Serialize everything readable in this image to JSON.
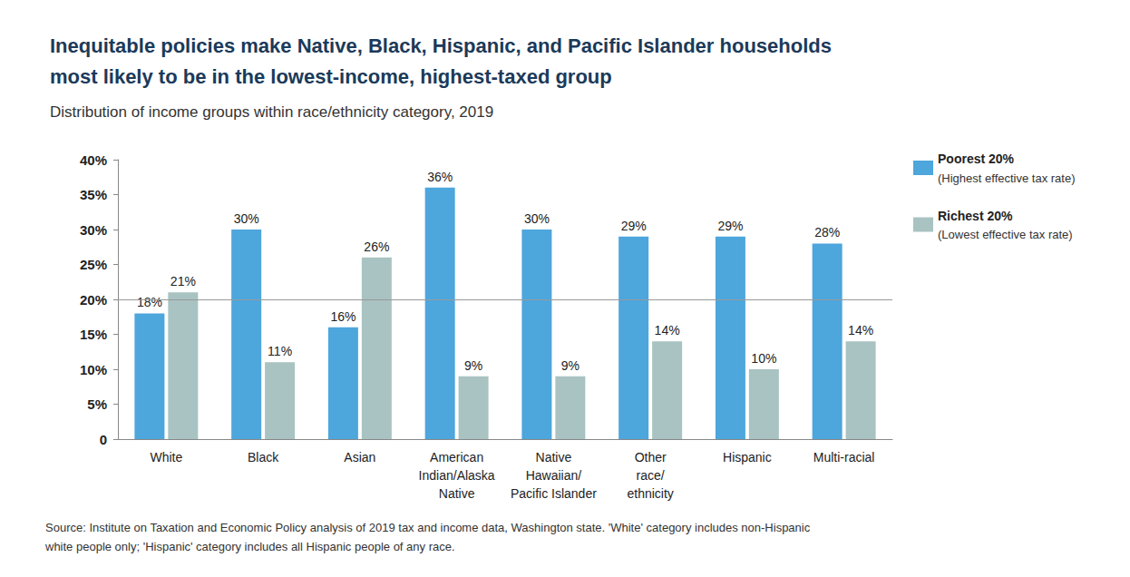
{
  "chart_data": {
    "type": "bar",
    "title": "Inequitable policies make Native, Black, Hispanic, and Pacific Islander households\nmost likely to be in the lowest-income, highest-taxed group",
    "subtitle": "Distribution of income groups within race/ethnicity category, 2019",
    "source": "Source: Institute on Taxation and Economic Policy analysis of 2019 tax and income data, Washington state. 'White' category includes non-Hispanic\nwhite people only; 'Hispanic' category includes all Hispanic people of any race.",
    "categories": [
      "White",
      "Black",
      "Asian",
      "American\nIndian/Alaska\nNative",
      "Native\nHawaiian/\nPacific Islander",
      "Other\nrace/\nethnicity",
      "Hispanic",
      "Multi-racial"
    ],
    "series": [
      {
        "name": "Poorest 20%\n(Highest effective tax rate)",
        "color": "#4da6dc",
        "values": [
          18,
          30,
          16,
          36,
          30,
          29,
          29,
          28
        ],
        "value_labels": [
          "18%",
          "30%",
          "16%",
          "36%",
          "30%",
          "29%",
          "29%",
          "28%"
        ]
      },
      {
        "name": "Richest 20%\n(Lowest effective tax rate)",
        "color": "#a8c3c1",
        "values": [
          21,
          11,
          26,
          9,
          9,
          14,
          10,
          14
        ],
        "value_labels": [
          "21%",
          "11%",
          "26%",
          "9%",
          "9%",
          "14%",
          "10%",
          "14%"
        ]
      }
    ],
    "ylim": [
      0,
      40
    ],
    "yticks": [
      0,
      {
        "value": 5,
        "label": "5%"
      },
      {
        "value": 10,
        "label": "10%"
      },
      {
        "value": 15,
        "label": "15%"
      },
      {
        "value": 20,
        "label": "20%"
      },
      {
        "value": 25,
        "label": "25%"
      },
      {
        "value": 30,
        "label": "30%"
      },
      {
        "value": 35,
        "label": "35%"
      },
      {
        "value": 40,
        "label": "40%"
      }
    ],
    "reference_line": 20,
    "grid": false,
    "legend": "right",
    "data_labels": true
  }
}
